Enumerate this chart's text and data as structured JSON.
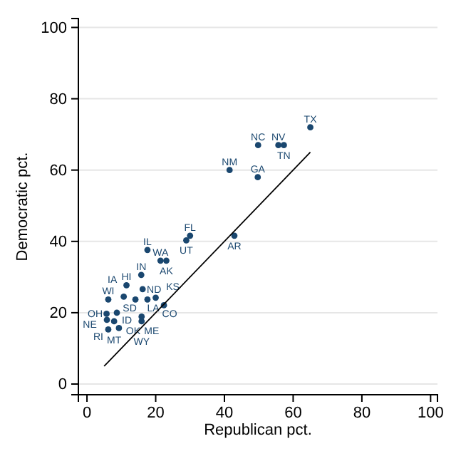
{
  "chart_data": {
    "type": "scatter",
    "xlabel": "Republican pct.",
    "ylabel": "Democratic pct.",
    "xlim": [
      -2.5,
      102
    ],
    "ylim": [
      -3,
      102.5
    ],
    "xticks": [
      0,
      20,
      40,
      60,
      80,
      100
    ],
    "yticks": [
      0,
      20,
      40,
      60,
      80,
      100
    ],
    "grid": "y",
    "series": [
      {
        "color": "#1a476f",
        "marker": "circle",
        "x": [
          65,
          49.8,
          55.7,
          57.3,
          41.5,
          49.7,
          42.9,
          28.9,
          30,
          17.6,
          21.4,
          23.1,
          15.8,
          11.5,
          16.2,
          6.2,
          10.7,
          14.1,
          17.6,
          20,
          22.4,
          5.7,
          8.7,
          5.8,
          7.9,
          15.9,
          15.9,
          6.2,
          9.3
        ],
        "values": [
          72,
          67,
          67,
          67,
          60,
          58,
          41.6,
          40.3,
          41.6,
          37.6,
          34.6,
          34.6,
          30.6,
          27.7,
          26.6,
          23.7,
          24.5,
          23.7,
          23.7,
          24.2,
          22.1,
          19.7,
          20,
          18,
          17.6,
          18.9,
          17.6,
          15.3,
          15.7
        ],
        "value_labels": [
          "TX",
          "NC",
          "NV",
          "TN",
          "NM",
          "GA",
          "AR",
          "UT",
          "FL",
          "IL",
          "WA",
          "AK",
          "IN",
          "HI",
          "ND",
          "WI",
          "IA",
          "SD",
          "LA",
          "KS",
          "CO",
          "OH",
          "ID",
          "NE",
          "MT",
          "ME",
          "WY",
          "RI",
          "OK"
        ]
      },
      {
        "type": "line",
        "color": "#000000",
        "x": [
          5,
          65
        ],
        "values": [
          5,
          65
        ],
        "line_style": "solid"
      }
    ]
  }
}
